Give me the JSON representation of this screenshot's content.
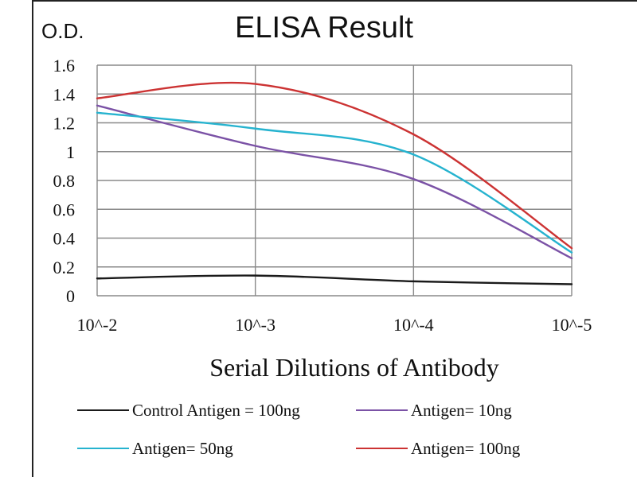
{
  "chart_data": {
    "type": "line",
    "title": "ELISA Result",
    "ylabel": "O.D.",
    "xlabel": "Serial Dilutions of Antibody",
    "categories": [
      "10^-2",
      "10^-3",
      "10^-4",
      "10^-5"
    ],
    "ylim": [
      0,
      1.6
    ],
    "yticks": [
      "0",
      "0.2",
      "0.4",
      "0.6",
      "0.8",
      "1",
      "1.2",
      "1.4",
      "1.6"
    ],
    "grid": true,
    "legend_position": "bottom",
    "series": [
      {
        "name": "Control Antigen = 100ng",
        "color": "#1a1a1a",
        "values": [
          0.12,
          0.14,
          0.1,
          0.08
        ]
      },
      {
        "name": "Antigen= 10ng",
        "color": "#7b52a6",
        "values": [
          1.32,
          1.04,
          0.81,
          0.26
        ]
      },
      {
        "name": "Antigen= 50ng",
        "color": "#26b3cf",
        "values": [
          1.27,
          1.16,
          0.98,
          0.3
        ]
      },
      {
        "name": "Antigen= 100ng",
        "color": "#cc3333",
        "values": [
          1.37,
          1.47,
          1.12,
          0.33
        ]
      }
    ]
  }
}
